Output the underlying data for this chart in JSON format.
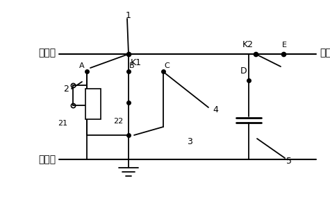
{
  "bg_color": "#ffffff",
  "line_color": "#000000",
  "text_color": "#000000",
  "figsize": [
    4.75,
    3.03
  ],
  "dpi": 100,
  "labels": {
    "ce_duan": "测试端",
    "mo_duan": "末端",
    "gong_di": "工作地",
    "K1": "K1",
    "K2": "K2",
    "A": "A",
    "B": "B",
    "C": "C",
    "D": "D",
    "E": "E",
    "n1": "1",
    "n2": "2",
    "n3": "3",
    "n4": "4",
    "n5": "5",
    "n21": "21",
    "n22": "22"
  }
}
